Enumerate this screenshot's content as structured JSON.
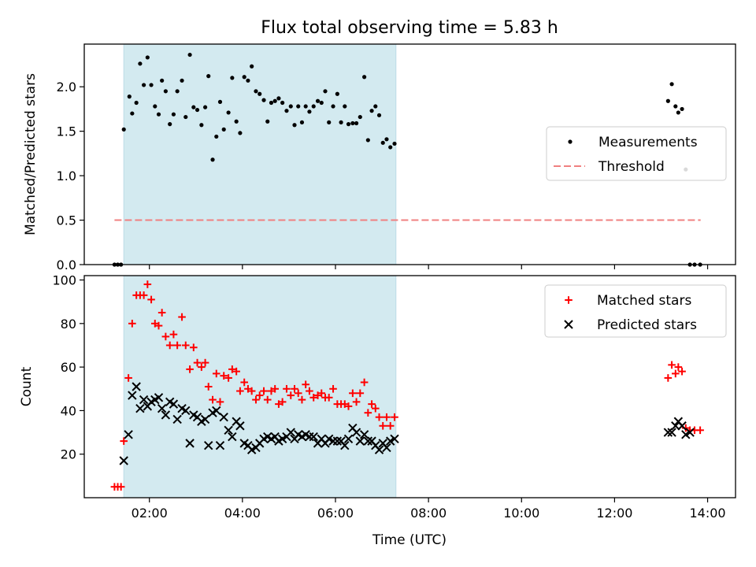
{
  "title": "Flux total observing time = 5.83 h",
  "xlabel": "Time (UTC)",
  "chart_data": [
    {
      "type": "scatter",
      "ylabel": "Matched/Predicted stars",
      "xlim": [
        0.6,
        14.6
      ],
      "ylim": [
        0,
        2.48
      ],
      "yticks": [
        0.0,
        0.5,
        1.0,
        1.5,
        2.0
      ],
      "ytick_labels": [
        "0.0",
        "0.5",
        "1.0",
        "1.5",
        "2.0"
      ],
      "shaded_span": {
        "x": [
          1.45,
          7.3
        ],
        "color": "#d3eaf0"
      },
      "threshold": {
        "name": "Threshold",
        "y": 0.5,
        "x": [
          1.25,
          13.85
        ],
        "color": "#f08080",
        "style": "dashed"
      },
      "legend": {
        "placement": "center-right",
        "entries": [
          "Measurements",
          "Threshold"
        ]
      },
      "series": [
        {
          "name": "Measurements",
          "marker": "dot",
          "color": "#000000",
          "points": [
            [
              1.25,
              0.0
            ],
            [
              1.32,
              0.0
            ],
            [
              1.39,
              0.0
            ],
            [
              1.45,
              1.52
            ],
            [
              1.57,
              1.89
            ],
            [
              1.63,
              1.7
            ],
            [
              1.72,
              1.82
            ],
            [
              1.8,
              2.26
            ],
            [
              1.88,
              2.02
            ],
            [
              1.96,
              2.33
            ],
            [
              2.04,
              2.02
            ],
            [
              2.12,
              1.78
            ],
            [
              2.2,
              1.69
            ],
            [
              2.27,
              2.07
            ],
            [
              2.35,
              1.95
            ],
            [
              2.44,
              1.58
            ],
            [
              2.52,
              1.69
            ],
            [
              2.6,
              1.95
            ],
            [
              2.7,
              2.07
            ],
            [
              2.78,
              1.66
            ],
            [
              2.87,
              2.36
            ],
            [
              2.95,
              1.77
            ],
            [
              3.03,
              1.74
            ],
            [
              3.12,
              1.57
            ],
            [
              3.2,
              1.77
            ],
            [
              3.27,
              2.12
            ],
            [
              3.36,
              1.18
            ],
            [
              3.44,
              1.44
            ],
            [
              3.52,
              1.83
            ],
            [
              3.6,
              1.52
            ],
            [
              3.7,
              1.71
            ],
            [
              3.78,
              2.1
            ],
            [
              3.87,
              1.61
            ],
            [
              3.95,
              1.48
            ],
            [
              4.04,
              2.11
            ],
            [
              4.12,
              2.07
            ],
            [
              4.2,
              2.23
            ],
            [
              4.29,
              1.95
            ],
            [
              4.37,
              1.92
            ],
            [
              4.46,
              1.85
            ],
            [
              4.54,
              1.61
            ],
            [
              4.62,
              1.82
            ],
            [
              4.7,
              1.84
            ],
            [
              4.78,
              1.87
            ],
            [
              4.86,
              1.82
            ],
            [
              4.95,
              1.73
            ],
            [
              5.04,
              1.78
            ],
            [
              5.12,
              1.57
            ],
            [
              5.2,
              1.78
            ],
            [
              5.28,
              1.6
            ],
            [
              5.36,
              1.78
            ],
            [
              5.44,
              1.72
            ],
            [
              5.53,
              1.78
            ],
            [
              5.62,
              1.84
            ],
            [
              5.7,
              1.82
            ],
            [
              5.78,
              1.95
            ],
            [
              5.86,
              1.6
            ],
            [
              5.95,
              1.78
            ],
            [
              6.04,
              1.92
            ],
            [
              6.12,
              1.6
            ],
            [
              6.2,
              1.78
            ],
            [
              6.28,
              1.58
            ],
            [
              6.37,
              1.59
            ],
            [
              6.45,
              1.59
            ],
            [
              6.53,
              1.66
            ],
            [
              6.62,
              2.11
            ],
            [
              6.7,
              1.4
            ],
            [
              6.78,
              1.73
            ],
            [
              6.86,
              1.78
            ],
            [
              6.94,
              1.68
            ],
            [
              7.02,
              1.37
            ],
            [
              7.1,
              1.41
            ],
            [
              7.18,
              1.32
            ],
            [
              7.27,
              1.36
            ],
            [
              13.15,
              1.84
            ],
            [
              13.23,
              2.03
            ],
            [
              13.31,
              1.78
            ],
            [
              13.37,
              1.71
            ],
            [
              13.45,
              1.75
            ],
            [
              13.53,
              1.07
            ],
            [
              13.62,
              0.0
            ],
            [
              13.72,
              0.0
            ],
            [
              13.84,
              0.0
            ]
          ]
        }
      ]
    },
    {
      "type": "scatter",
      "ylabel": "Count",
      "xlim": [
        0.6,
        14.6
      ],
      "ylim": [
        0,
        102
      ],
      "yticks": [
        20,
        40,
        60,
        80,
        100
      ],
      "ytick_labels": [
        "20",
        "40",
        "60",
        "80",
        "100"
      ],
      "xticks": [
        2,
        4,
        6,
        8,
        10,
        12,
        14
      ],
      "xtick_labels": [
        "02:00",
        "04:00",
        "06:00",
        "08:00",
        "10:00",
        "12:00",
        "14:00"
      ],
      "shaded_span": {
        "x": [
          1.45,
          7.3
        ],
        "color": "#d3eaf0"
      },
      "legend": {
        "placement": "top-right",
        "entries": [
          "Matched stars",
          "Predicted stars"
        ]
      },
      "series": [
        {
          "name": "Matched stars",
          "marker": "plus",
          "color": "#ff0000",
          "points": [
            [
              1.25,
              5
            ],
            [
              1.32,
              5
            ],
            [
              1.39,
              5
            ],
            [
              1.45,
              26
            ],
            [
              1.55,
              55
            ],
            [
              1.63,
              80
            ],
            [
              1.72,
              93
            ],
            [
              1.8,
              93
            ],
            [
              1.88,
              93
            ],
            [
              1.96,
              98
            ],
            [
              2.04,
              91
            ],
            [
              2.12,
              80
            ],
            [
              2.2,
              79
            ],
            [
              2.27,
              85
            ],
            [
              2.35,
              74
            ],
            [
              2.44,
              70
            ],
            [
              2.52,
              75
            ],
            [
              2.6,
              70
            ],
            [
              2.7,
              83
            ],
            [
              2.78,
              70
            ],
            [
              2.87,
              59
            ],
            [
              2.95,
              69
            ],
            [
              3.03,
              62
            ],
            [
              3.12,
              60
            ],
            [
              3.2,
              62
            ],
            [
              3.27,
              51
            ],
            [
              3.36,
              45
            ],
            [
              3.44,
              57
            ],
            [
              3.52,
              44
            ],
            [
              3.6,
              56
            ],
            [
              3.7,
              55
            ],
            [
              3.78,
              59
            ],
            [
              3.87,
              58
            ],
            [
              3.95,
              49
            ],
            [
              4.04,
              53
            ],
            [
              4.12,
              50
            ],
            [
              4.2,
              49
            ],
            [
              4.29,
              45
            ],
            [
              4.37,
              47
            ],
            [
              4.46,
              49
            ],
            [
              4.54,
              45
            ],
            [
              4.62,
              49
            ],
            [
              4.7,
              50
            ],
            [
              4.78,
              43
            ],
            [
              4.86,
              44
            ],
            [
              4.95,
              50
            ],
            [
              5.04,
              47
            ],
            [
              5.12,
              50
            ],
            [
              5.2,
              48
            ],
            [
              5.28,
              45
            ],
            [
              5.36,
              52
            ],
            [
              5.44,
              49
            ],
            [
              5.53,
              46
            ],
            [
              5.62,
              47
            ],
            [
              5.7,
              48
            ],
            [
              5.78,
              46
            ],
            [
              5.86,
              46
            ],
            [
              5.95,
              50
            ],
            [
              6.04,
              43
            ],
            [
              6.12,
              43
            ],
            [
              6.2,
              43
            ],
            [
              6.28,
              42
            ],
            [
              6.37,
              48
            ],
            [
              6.45,
              44
            ],
            [
              6.53,
              48
            ],
            [
              6.62,
              53
            ],
            [
              6.7,
              39
            ],
            [
              6.78,
              43
            ],
            [
              6.86,
              41
            ],
            [
              6.94,
              37
            ],
            [
              7.02,
              33
            ],
            [
              7.1,
              37
            ],
            [
              7.18,
              33
            ],
            [
              7.27,
              37
            ],
            [
              13.15,
              55
            ],
            [
              13.23,
              61
            ],
            [
              13.31,
              57
            ],
            [
              13.37,
              60
            ],
            [
              13.45,
              58
            ],
            [
              13.53,
              32
            ],
            [
              13.62,
              31
            ],
            [
              13.72,
              31
            ],
            [
              13.84,
              31
            ]
          ]
        },
        {
          "name": "Predicted stars",
          "marker": "x",
          "color": "#000000",
          "points": [
            [
              1.45,
              17
            ],
            [
              1.55,
              29
            ],
            [
              1.63,
              47
            ],
            [
              1.72,
              51
            ],
            [
              1.8,
              41
            ],
            [
              1.88,
              45
            ],
            [
              1.96,
              42
            ],
            [
              2.04,
              44
            ],
            [
              2.12,
              45
            ],
            [
              2.2,
              46
            ],
            [
              2.27,
              41
            ],
            [
              2.35,
              38
            ],
            [
              2.44,
              44
            ],
            [
              2.52,
              43
            ],
            [
              2.6,
              36
            ],
            [
              2.7,
              41
            ],
            [
              2.78,
              40
            ],
            [
              2.87,
              25
            ],
            [
              2.95,
              38
            ],
            [
              3.03,
              37
            ],
            [
              3.12,
              35
            ],
            [
              3.2,
              36
            ],
            [
              3.27,
              24
            ],
            [
              3.36,
              39
            ],
            [
              3.44,
              40
            ],
            [
              3.52,
              24
            ],
            [
              3.6,
              37
            ],
            [
              3.7,
              31
            ],
            [
              3.78,
              28
            ],
            [
              3.87,
              35
            ],
            [
              3.95,
              33
            ],
            [
              4.04,
              25
            ],
            [
              4.12,
              24
            ],
            [
              4.2,
              22
            ],
            [
              4.29,
              23
            ],
            [
              4.37,
              25
            ],
            [
              4.46,
              27
            ],
            [
              4.54,
              28
            ],
            [
              4.62,
              27
            ],
            [
              4.7,
              28
            ],
            [
              4.78,
              26
            ],
            [
              4.86,
              27
            ],
            [
              4.95,
              28
            ],
            [
              5.04,
              30
            ],
            [
              5.12,
              27
            ],
            [
              5.2,
              29
            ],
            [
              5.28,
              28
            ],
            [
              5.36,
              29
            ],
            [
              5.44,
              28
            ],
            [
              5.53,
              28
            ],
            [
              5.62,
              25
            ],
            [
              5.7,
              27
            ],
            [
              5.78,
              25
            ],
            [
              5.86,
              27
            ],
            [
              5.95,
              26
            ],
            [
              6.04,
              26
            ],
            [
              6.12,
              26
            ],
            [
              6.2,
              24
            ],
            [
              6.28,
              27
            ],
            [
              6.37,
              32
            ],
            [
              6.45,
              30
            ],
            [
              6.53,
              26
            ],
            [
              6.62,
              29
            ],
            [
              6.7,
              26
            ],
            [
              6.78,
              26
            ],
            [
              6.86,
              24
            ],
            [
              6.94,
              22
            ],
            [
              7.02,
              25
            ],
            [
              7.1,
              23
            ],
            [
              7.18,
              26
            ],
            [
              7.27,
              27
            ],
            [
              13.15,
              30
            ],
            [
              13.23,
              30
            ],
            [
              13.31,
              33
            ],
            [
              13.37,
              35
            ],
            [
              13.45,
              33
            ],
            [
              13.53,
              29
            ],
            [
              13.62,
              30
            ]
          ]
        }
      ]
    }
  ]
}
